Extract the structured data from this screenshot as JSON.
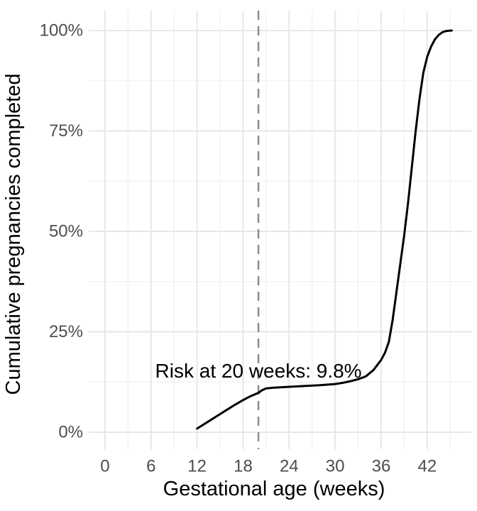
{
  "figure": {
    "background": "#FFFFFF"
  },
  "chart_data": {
    "type": "line",
    "title": "",
    "xlabel": "Gestational age (weeks)",
    "ylabel": "Cumulative pregnancies completed",
    "xlim": [
      -2.12,
      47.75
    ],
    "ylim": [
      -4.24,
      104.95
    ],
    "x_major_ticks": [
      0,
      6,
      12,
      18,
      24,
      30,
      36,
      42
    ],
    "x_minor_ticks": [
      3,
      9,
      15,
      21,
      27,
      33,
      39,
      45
    ],
    "y_major_ticks": [
      {
        "value": 0,
        "label": "0%"
      },
      {
        "value": 25,
        "label": "25%"
      },
      {
        "value": 50,
        "label": "50%"
      },
      {
        "value": 75,
        "label": "75%"
      },
      {
        "value": 100,
        "label": "100%"
      }
    ],
    "y_minor_ticks": [
      12.5,
      37.5,
      62.5,
      87.5
    ],
    "grid": "major+minor",
    "legend": "none",
    "series": [
      {
        "name": "Cumulative pregnancies completed",
        "color": "#000000",
        "x": [
          12,
          13,
          14,
          15,
          16,
          17,
          18,
          19,
          20,
          20.5,
          21,
          22,
          24,
          26,
          28,
          30,
          31,
          32,
          33,
          34,
          35,
          36,
          36.5,
          37,
          37.5,
          38,
          38.5,
          39,
          39.5,
          40,
          40.5,
          41,
          41.5,
          42,
          42.5,
          43,
          43.5,
          44,
          44.5,
          45.2
        ],
        "y": [
          0.9,
          2.1,
          3.3,
          4.5,
          5.7,
          6.9,
          8.0,
          9.0,
          9.8,
          10.5,
          10.9,
          11.1,
          11.3,
          11.5,
          11.7,
          12.0,
          12.3,
          12.7,
          13.2,
          13.9,
          15.5,
          18.0,
          19.8,
          22.5,
          28,
          35,
          42,
          49,
          57,
          66,
          75,
          83,
          89.5,
          93.5,
          96,
          97.8,
          98.9,
          99.6,
          99.9,
          100
        ]
      }
    ],
    "vline": {
      "x": 20,
      "style": "dashed",
      "color": "#8C8C8C"
    },
    "annotation": {
      "text": "Risk at 20 weeks: 9.8%",
      "x": 20,
      "y": 13.6,
      "color": "#000000"
    },
    "colors": {
      "curve": "#000000",
      "grid_major": "#E7E7E7",
      "grid_minor": "#F1F1F1",
      "tick_text": "#4D4D4D",
      "title_text": "#000000",
      "vline": "#8C8C8C"
    }
  }
}
